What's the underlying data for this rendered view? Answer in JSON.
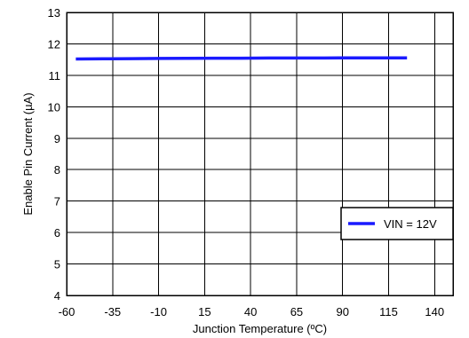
{
  "chart_data": {
    "type": "line",
    "xlabel": "Junction Temperature (ºC)",
    "ylabel": "Enable Pin Current (µA)",
    "xlim": [
      -60,
      150
    ],
    "ylim": [
      4,
      13
    ],
    "x_ticks": [
      -60,
      -35,
      -10,
      15,
      40,
      65,
      90,
      115,
      140
    ],
    "y_ticks": [
      4,
      5,
      6,
      7,
      8,
      9,
      10,
      11,
      12,
      13
    ],
    "grid": true,
    "legend_position": "lower-right",
    "series": [
      {
        "name": "VIN = 12V",
        "color": "#1a1aff",
        "x": [
          -55,
          -40,
          -25,
          -10,
          5,
          20,
          35,
          50,
          65,
          80,
          95,
          110,
          125
        ],
        "y": [
          11.52,
          11.525,
          11.53,
          11.535,
          11.54,
          11.545,
          11.545,
          11.55,
          11.55,
          11.55,
          11.555,
          11.555,
          11.555
        ]
      }
    ]
  }
}
